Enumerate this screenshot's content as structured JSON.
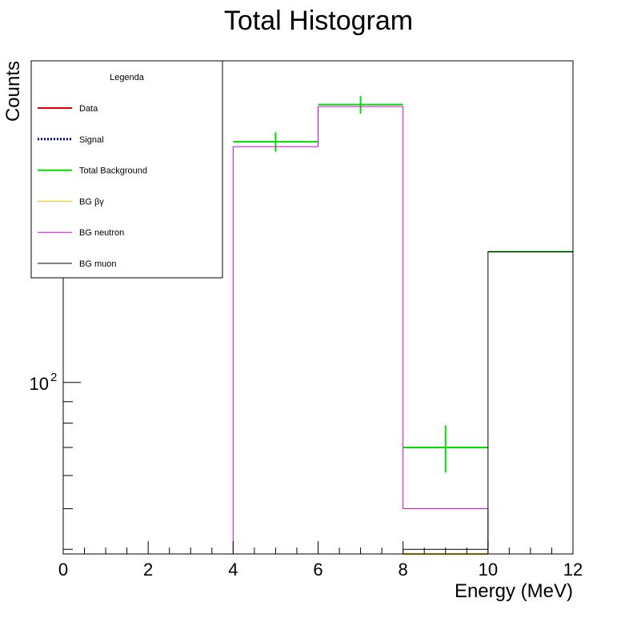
{
  "chart_data": {
    "type": "bar",
    "title": "Total Histogram",
    "xlabel": "Energy (MeV)",
    "ylabel": "Counts",
    "xlim": [
      0,
      12
    ],
    "ylim": [
      39,
      585
    ],
    "yscale": "log",
    "x_ticks": [
      "0",
      "2",
      "4",
      "6",
      "8",
      "10",
      "12"
    ],
    "y_ticks": [
      {
        "value": 100,
        "label": "10",
        "sup": "2"
      }
    ],
    "bin_edges": [
      0,
      2,
      4,
      6,
      8,
      10,
      12
    ],
    "grid": false,
    "legend": {
      "title": "Legenda",
      "placement": "top-left",
      "entries": [
        {
          "name": "Data",
          "color": "#e00000",
          "style": "solid"
        },
        {
          "name": "Signal",
          "color": "#0000a0",
          "style": "dotted"
        },
        {
          "name": "Total Background",
          "color": "#00dd00",
          "style": "solid"
        },
        {
          "name": "BG βγ",
          "color": "#e8c000",
          "style": "solid"
        },
        {
          "name": "BG neutron",
          "color": "#e000e0",
          "style": "solid"
        },
        {
          "name": "BG muon",
          "color": "#000000",
          "style": "solid"
        }
      ]
    },
    "series": [
      {
        "name": "Total Background",
        "color": "#00dd00",
        "values": [
          null,
          null,
          375,
          460,
          70,
          205
        ],
        "errors": [
          null,
          null,
          20,
          22,
          9,
          0
        ]
      },
      {
        "name": "BG neutron",
        "color": "#e000e0",
        "values": [
          null,
          null,
          365,
          455,
          50,
          null
        ]
      },
      {
        "name": "BG muon",
        "color": "#000000",
        "values": [
          null,
          null,
          null,
          null,
          40,
          205
        ]
      },
      {
        "name": "BG βγ",
        "color": "#e8c000",
        "values": [
          null,
          null,
          null,
          null,
          39,
          null
        ]
      }
    ]
  }
}
